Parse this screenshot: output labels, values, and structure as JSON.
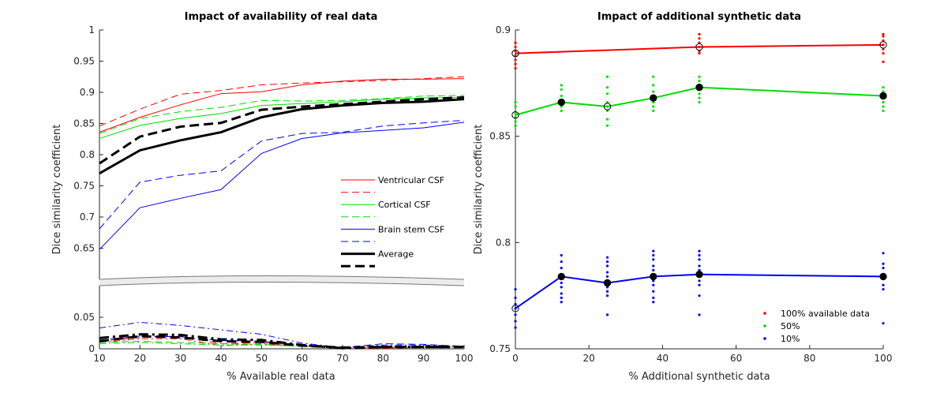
{
  "chart_data": [
    {
      "type": "line",
      "title": "Impact of availability of real data",
      "xlabel": "% Available real data",
      "ylabel": "Dice similarity coefficient",
      "xlim": [
        10,
        100
      ],
      "x_ticks": [
        "10",
        "20",
        "30",
        "40",
        "50",
        "60",
        "70",
        "80",
        "90",
        "100"
      ],
      "upper_ylim": [
        0.6,
        1.0
      ],
      "upper_y_ticks": [
        "0.65",
        "0.7",
        "0.75",
        "0.8",
        "0.85",
        "0.9",
        "0.95",
        "1"
      ],
      "lower_ylim": [
        0,
        0.1
      ],
      "lower_y_ticks": [
        "0",
        "0.05"
      ],
      "x": [
        10,
        20,
        30,
        40,
        50,
        60,
        70,
        80,
        90,
        100
      ],
      "legend_labels": [
        "Ventricular CSF",
        "",
        "Cortical CSF",
        "",
        "Brain stem CSF",
        "",
        "Average",
        ""
      ],
      "series": [
        {
          "name": "Ventricular CSF",
          "color": "#ff0000",
          "style": "solid",
          "width": 1,
          "values": [
            0.836,
            0.86,
            0.88,
            0.898,
            0.901,
            0.912,
            0.918,
            0.921,
            0.921,
            0.922
          ]
        },
        {
          "name": "Ventricular CSF (dashed)",
          "color": "#ff0000",
          "style": "dashed",
          "width": 1,
          "values": [
            0.846,
            0.873,
            0.897,
            0.903,
            0.912,
            0.915,
            0.917,
            0.919,
            0.922,
            0.925
          ]
        },
        {
          "name": "Cortical CSF",
          "color": "#00dd00",
          "style": "solid",
          "width": 1,
          "values": [
            0.826,
            0.847,
            0.858,
            0.866,
            0.879,
            0.882,
            0.885,
            0.889,
            0.891,
            0.892
          ]
        },
        {
          "name": "Cortical CSF (dashed)",
          "color": "#00dd00",
          "style": "dashed",
          "width": 1,
          "values": [
            0.834,
            0.858,
            0.869,
            0.876,
            0.887,
            0.886,
            0.887,
            0.89,
            0.894,
            0.895
          ]
        },
        {
          "name": "Brain stem CSF",
          "color": "#0000ff",
          "style": "solid",
          "width": 1,
          "values": [
            0.648,
            0.715,
            0.73,
            0.744,
            0.802,
            0.826,
            0.835,
            0.839,
            0.843,
            0.852
          ]
        },
        {
          "name": "Brain stem CSF (dashed)",
          "color": "#0000ff",
          "style": "dashed",
          "width": 1,
          "values": [
            0.681,
            0.756,
            0.767,
            0.774,
            0.822,
            0.834,
            0.836,
            0.846,
            0.851,
            0.855
          ]
        },
        {
          "name": "Average",
          "color": "#000000",
          "style": "solid",
          "width": 3,
          "values": [
            0.77,
            0.807,
            0.823,
            0.836,
            0.86,
            0.873,
            0.879,
            0.883,
            0.885,
            0.889
          ]
        },
        {
          "name": "Average (dashed)",
          "color": "#000000",
          "style": "dashed",
          "width": 3,
          "values": [
            0.786,
            0.829,
            0.845,
            0.851,
            0.872,
            0.877,
            0.881,
            0.885,
            0.889,
            0.892
          ]
        }
      ],
      "lower_series": [
        {
          "name": "Ventricular CSF std",
          "color": "#ff0000",
          "style": "dashdot",
          "width": 1,
          "values": [
            0.01,
            0.016,
            0.016,
            0.005,
            0.008,
            0.004,
            0.001,
            0.001,
            0.002,
            0.003
          ]
        },
        {
          "name": "Ventricular CSF std 2",
          "color": "#ff0000",
          "style": "dashed",
          "width": 1,
          "values": [
            0.012,
            0.018,
            0.02,
            0.008,
            0.01,
            0.005,
            0.002,
            0.003,
            0.003,
            0.003
          ]
        },
        {
          "name": "Cortical CSF std",
          "color": "#00dd00",
          "style": "dashdot",
          "width": 1,
          "values": [
            0.008,
            0.01,
            0.008,
            0.006,
            0.006,
            0.004,
            0.002,
            0.002,
            0.003,
            0.003
          ]
        },
        {
          "name": "Cortical CSF std 2",
          "color": "#00dd00",
          "style": "dashed",
          "width": 1,
          "values": [
            0.01,
            0.012,
            0.01,
            0.008,
            0.007,
            0.004,
            0.002,
            0.002,
            0.003,
            0.003
          ]
        },
        {
          "name": "Brain stem CSF std",
          "color": "#0000ff",
          "style": "dashdot",
          "width": 1,
          "values": [
            0.033,
            0.042,
            0.037,
            0.03,
            0.023,
            0.009,
            0.002,
            0.006,
            0.006,
            0.004
          ]
        },
        {
          "name": "Brain stem CSF std 2",
          "color": "#0000ff",
          "style": "dashed",
          "width": 1,
          "values": [
            0.014,
            0.02,
            0.019,
            0.013,
            0.012,
            0.006,
            0.002,
            0.008,
            0.007,
            0.004
          ]
        },
        {
          "name": "Average std",
          "color": "#000000",
          "style": "dashdot",
          "width": 3,
          "values": [
            0.017,
            0.023,
            0.022,
            0.015,
            0.014,
            0.006,
            0.001,
            0.003,
            0.003,
            0.003
          ]
        },
        {
          "name": "Average std 2",
          "color": "#000000",
          "style": "dashed",
          "width": 3,
          "values": [
            0.012,
            0.02,
            0.018,
            0.012,
            0.011,
            0.005,
            0.002,
            0.003,
            0.003,
            0.003
          ]
        }
      ]
    },
    {
      "type": "scatter",
      "title": "Impact of additional synthetic data",
      "xlabel": "% Additional synthetic data",
      "ylabel": "Dice similarity coefficient",
      "xlim": [
        0,
        100
      ],
      "ylim": [
        0.75,
        0.9
      ],
      "x_ticks": [
        "0",
        "20",
        "40",
        "60",
        "80",
        "100"
      ],
      "y_ticks": [
        "0.75",
        "0.8",
        "0.85",
        "0.9"
      ],
      "x": [
        0,
        12.5,
        25,
        37.5,
        50,
        100
      ],
      "series": [
        {
          "name": "100% available data",
          "color": "#ff0000",
          "means": [
            0.889,
            null,
            null,
            null,
            0.892,
            0.893
          ],
          "open_points": [
            0,
            4,
            5
          ],
          "scatter": [
            [
              0.894,
              0.892,
              0.89,
              0.888,
              0.886,
              0.884,
              0.882
            ],
            [],
            [],
            [],
            [
              0.898,
              0.896,
              0.894,
              0.892,
              0.89,
              0.889
            ],
            [
              0.898,
              0.897,
              0.895,
              0.893,
              0.891,
              0.889,
              0.885
            ]
          ]
        },
        {
          "name": "50%",
          "color": "#00dd00",
          "means": [
            0.86,
            0.866,
            0.864,
            0.868,
            0.873,
            0.869
          ],
          "open_points": [
            0,
            2
          ],
          "scatter": [
            [
              0.866,
              0.864,
              0.861,
              0.859,
              0.857,
              0.855
            ],
            [
              0.874,
              0.872,
              0.869,
              0.866,
              0.864,
              0.862
            ],
            [
              0.878,
              0.873,
              0.87,
              0.866,
              0.864,
              0.862,
              0.858,
              0.855
            ],
            [
              0.878,
              0.874,
              0.871,
              0.869,
              0.866,
              0.864,
              0.862
            ],
            [
              0.878,
              0.876,
              0.874,
              0.872,
              0.87,
              0.868,
              0.866
            ],
            [
              0.873,
              0.871,
              0.869,
              0.866,
              0.864,
              0.862
            ]
          ]
        },
        {
          "name": "10%",
          "color": "#0000ff",
          "means": [
            0.769,
            0.784,
            0.781,
            0.784,
            0.785,
            0.784
          ],
          "open_points": [
            0
          ],
          "scatter": [
            [
              0.778,
              0.774,
              0.771,
              0.769,
              0.766,
              0.763,
              0.76
            ],
            [
              0.794,
              0.791,
              0.788,
              0.785,
              0.783,
              0.781,
              0.779,
              0.776,
              0.774,
              0.772
            ],
            [
              0.793,
              0.791,
              0.789,
              0.786,
              0.784,
              0.781,
              0.779,
              0.777,
              0.775,
              0.766
            ],
            [
              0.796,
              0.794,
              0.792,
              0.789,
              0.787,
              0.784,
              0.782,
              0.78,
              0.777,
              0.774,
              0.772
            ],
            [
              0.796,
              0.794,
              0.792,
              0.789,
              0.787,
              0.784,
              0.782,
              0.78,
              0.775,
              0.766
            ],
            [
              0.795,
              0.79,
              0.788,
              0.785,
              0.783,
              0.78,
              0.778,
              0.762
            ]
          ]
        }
      ]
    }
  ]
}
